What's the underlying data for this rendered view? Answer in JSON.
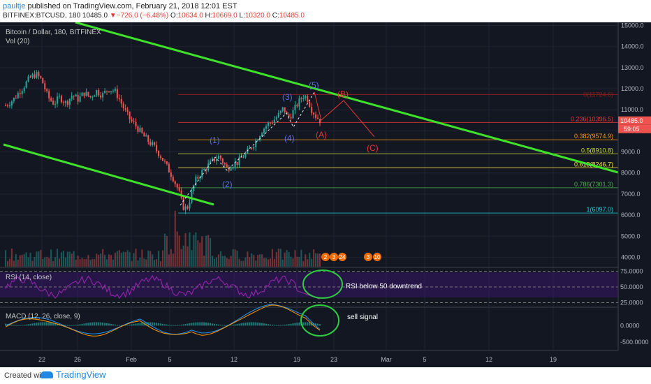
{
  "header": {
    "user": "paultje",
    "published": " published on TradingView.com, February 21, 2018 12:01 EST",
    "symbol": "BITFINEX:BTCUSD, 180",
    "last": "10485.0",
    "change": "−726.0 (−6.48%)",
    "o_label": "O:",
    "o_val": "10634.0",
    "h_label": "H:",
    "h_val": "10669.0",
    "l_label": "L:",
    "l_val": "10320.0",
    "c_label": "C:",
    "c_val": "10485.0"
  },
  "legend": {
    "title": "Bitcoin / Dollar, 180, BITFINEX",
    "vol": "Vol (20)",
    "rsi": "RSI (14, close)",
    "macd": "MACD (12, 26, close, 9)"
  },
  "annotations": {
    "rsi_note": "RSI below 50 downtrend",
    "macd_note": "sell signal",
    "waves": [
      "(1)",
      "(2)",
      "(3)",
      "(4)",
      "(5)"
    ],
    "corrective": [
      "(A)",
      "(B)",
      "(C)"
    ]
  },
  "price_tags": {
    "last": "10485.0",
    "timer": "59:05"
  },
  "event_badges": [
    "2",
    "3",
    "24",
    "3",
    "10"
  ],
  "footer": {
    "created": "Created with",
    "brand": "TradingView"
  },
  "colors": {
    "bg": "#131722",
    "green_trend": "#3ee22a",
    "up": "#26a69a",
    "down": "#ef5350",
    "wave_blue": "#5a6cf0",
    "abc_red": "#e53935",
    "rsi": "#9c27b0",
    "macd": "#2196f3",
    "signal": "#ff9800"
  },
  "chart_data": {
    "type": "candlestick",
    "price_axis": {
      "ticks": [
        4000,
        5000,
        6000,
        7000,
        8000,
        9000,
        10000,
        11000,
        12000,
        13000,
        14000,
        15000
      ],
      "labels": [
        "4000.0",
        "5000.0",
        "6000.0",
        "7000.0",
        "8000.0",
        "9000.0",
        "10000.0",
        "11000.0",
        "12000.0",
        "13000.0",
        "14000.0",
        "15000.0"
      ],
      "range": [
        3550,
        15150
      ]
    },
    "time_axis": {
      "labels": [
        "22",
        "26",
        "Feb",
        "5",
        "12",
        "19",
        "23",
        "Mar",
        "5",
        "12",
        "19"
      ]
    },
    "fib_levels": [
      {
        "label": "0.236(10396.5)",
        "value": 10396.5
      },
      {
        "label": "0.382(9574.9)",
        "value": 9574.9
      },
      {
        "label": "0.5(8910.8)",
        "value": 8910.8
      },
      {
        "label": "0.618(8246.7)",
        "value": 8246.7
      },
      {
        "label": "0.786(7301.3)",
        "value": 7301.3
      },
      {
        "label": "1(6097.0)",
        "value": 6097.0
      }
    ],
    "fib_zero_label": "0(11724.6)",
    "rsi_axis": {
      "labels": [
        "75.0000",
        "50.0000",
        "25.0000"
      ],
      "range": [
        20,
        80
      ]
    },
    "macd_axis": {
      "labels": [
        "0.0000",
        "-500.0000"
      ],
      "range": [
        -760,
        520
      ]
    },
    "price_path": [
      [
        0,
        11200
      ],
      [
        4,
        11500
      ],
      [
        8,
        12000
      ],
      [
        12,
        12500
      ],
      [
        15,
        12700
      ],
      [
        18,
        12400
      ],
      [
        21,
        11600
      ],
      [
        24,
        11300
      ],
      [
        27,
        11600
      ],
      [
        30,
        11300
      ],
      [
        33,
        11700
      ],
      [
        36,
        11500
      ],
      [
        39,
        11800
      ],
      [
        42,
        11600
      ],
      [
        45,
        11900
      ],
      [
        48,
        11700
      ],
      [
        51,
        12000
      ],
      [
        54,
        11900
      ],
      [
        56,
        11600
      ],
      [
        59,
        11000
      ],
      [
        62,
        10500
      ],
      [
        65,
        10200
      ],
      [
        68,
        9800
      ],
      [
        71,
        9500
      ],
      [
        74,
        9200
      ],
      [
        77,
        8800
      ],
      [
        80,
        8300
      ],
      [
        83,
        7800
      ],
      [
        86,
        7100
      ],
      [
        88,
        6400
      ],
      [
        90,
        6300
      ],
      [
        92,
        6900
      ],
      [
        94,
        7600
      ],
      [
        97,
        8000
      ],
      [
        100,
        8300
      ],
      [
        103,
        8600
      ],
      [
        106,
        8800
      ],
      [
        108,
        8500
      ],
      [
        110,
        8200
      ],
      [
        112,
        8400
      ],
      [
        115,
        8500
      ],
      [
        118,
        8800
      ],
      [
        121,
        9100
      ],
      [
        124,
        9500
      ],
      [
        127,
        10000
      ],
      [
        130,
        10300
      ],
      [
        133,
        10500
      ],
      [
        136,
        10800
      ],
      [
        138,
        11100
      ],
      [
        140,
        10600
      ],
      [
        142,
        10800
      ],
      [
        145,
        11300
      ],
      [
        148,
        11700
      ],
      [
        150,
        11500
      ],
      [
        152,
        11000
      ],
      [
        154,
        10700
      ],
      [
        156,
        10500
      ]
    ]
  }
}
